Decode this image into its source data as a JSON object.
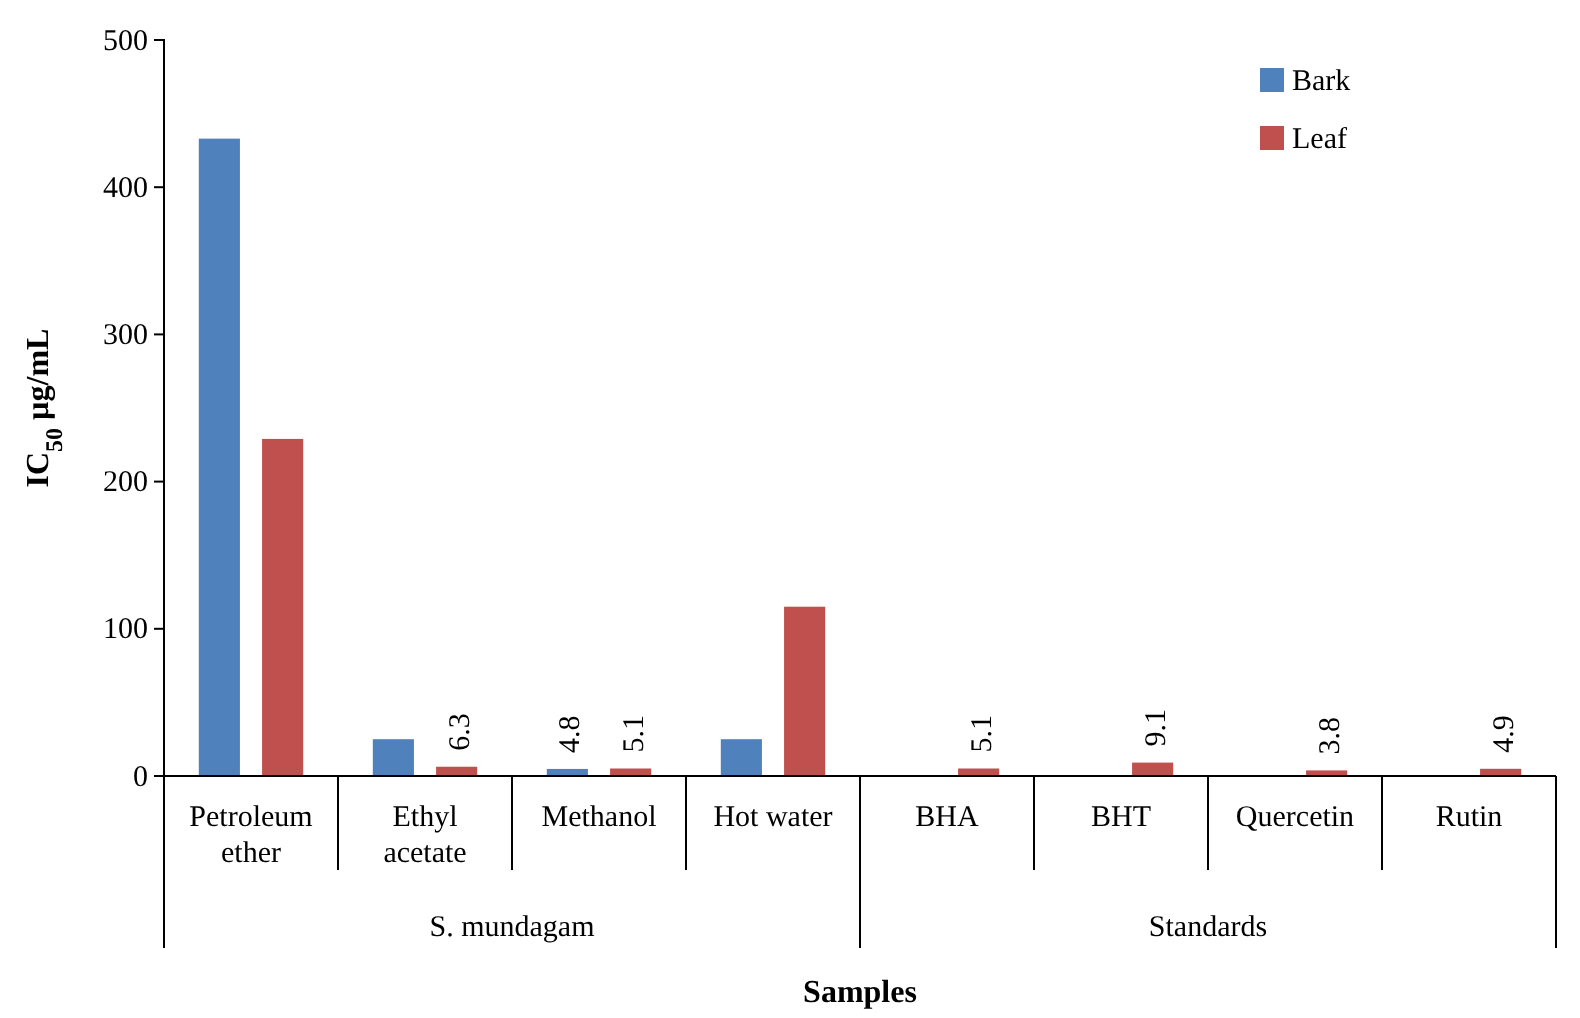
{
  "chart_data": {
    "type": "bar",
    "xlabel": "Samples",
    "ylabel": "IC$_{50}$ µg/mL",
    "categories": [
      "Petroleum ether",
      "Ethyl acetate",
      "Methanol",
      "Hot water",
      "BHA",
      "BHT",
      "Quercetin",
      "Rutin"
    ],
    "series": [
      {
        "name": "Bark",
        "color": "#4f81bd",
        "values": [
          433,
          25,
          4.8,
          25,
          null,
          null,
          null,
          null
        ],
        "value_labels": [
          null,
          null,
          "4.8",
          null,
          null,
          null,
          null,
          null
        ]
      },
      {
        "name": "Leaf",
        "color": "#c0504d",
        "values": [
          229,
          6.3,
          5.1,
          115,
          5.1,
          9.1,
          3.8,
          4.9
        ],
        "value_labels": [
          null,
          "6.3",
          "5.1",
          null,
          "5.1",
          "9.1",
          "3.8",
          "4.9"
        ]
      }
    ],
    "annotations": [
      "S. mundagam",
      "Standards"
    ],
    "ylim": [
      0,
      500
    ],
    "yticks": [
      0,
      100,
      200,
      300,
      400,
      500
    ],
    "grid": false,
    "legend": "top right"
  }
}
